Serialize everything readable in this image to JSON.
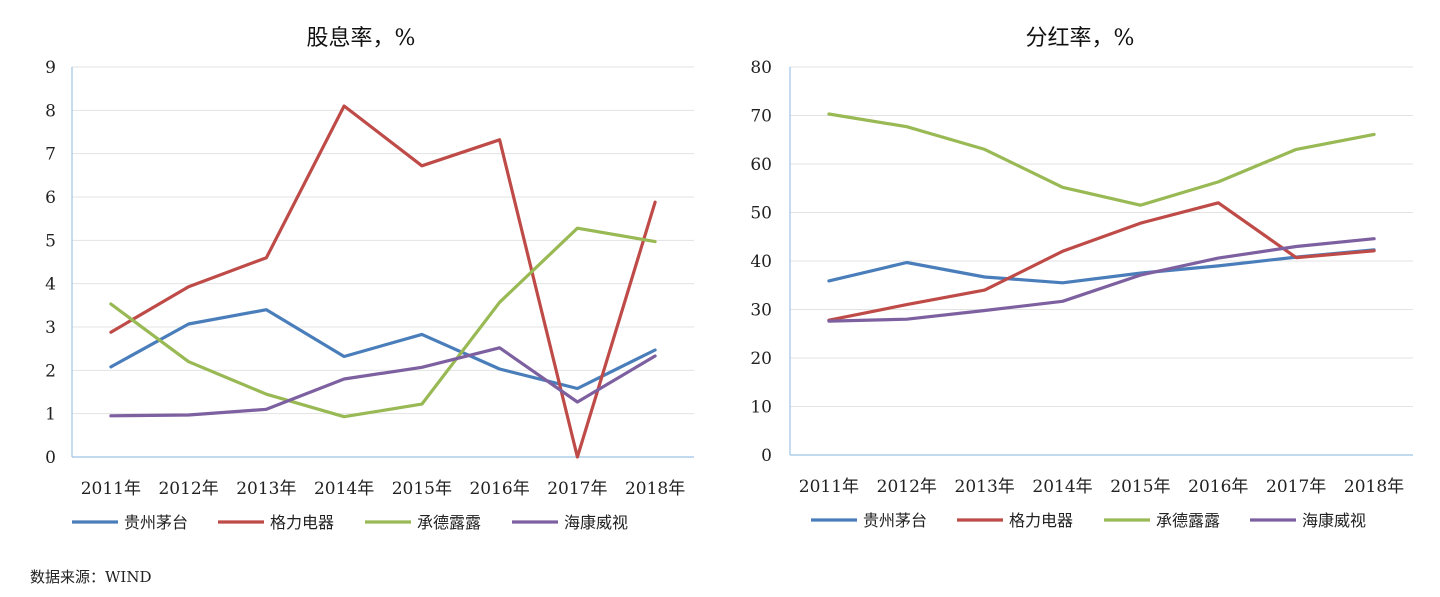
{
  "source_text": "数据来源：WIND",
  "chart_data": [
    {
      "type": "line",
      "title": "股息率，%",
      "xlabel": "",
      "ylabel": "",
      "categories": [
        "2011年",
        "2012年",
        "2013年",
        "2014年",
        "2015年",
        "2016年",
        "2017年",
        "2018年"
      ],
      "ylim": [
        0,
        9
      ],
      "yticks": [
        0,
        1,
        2,
        3,
        4,
        5,
        6,
        7,
        8,
        9
      ],
      "grid": true,
      "legend_position": "bottom",
      "series": [
        {
          "name": "贵州茅台",
          "color": "#4a7ebb",
          "values": [
            2.08,
            3.07,
            3.4,
            2.32,
            2.83,
            2.03,
            1.58,
            2.47
          ]
        },
        {
          "name": "格力电器",
          "color": "#be4b48",
          "values": [
            2.88,
            3.93,
            4.6,
            8.1,
            6.72,
            7.32,
            0.0,
            5.88
          ]
        },
        {
          "name": "承德露露",
          "color": "#98b954",
          "values": [
            3.53,
            2.2,
            1.45,
            0.93,
            1.22,
            3.57,
            5.28,
            4.97
          ]
        },
        {
          "name": "海康威视",
          "color": "#7d60a0",
          "values": [
            0.95,
            0.97,
            1.1,
            1.8,
            2.07,
            2.52,
            1.27,
            2.33
          ]
        }
      ]
    },
    {
      "type": "line",
      "title": "分红率，%",
      "xlabel": "",
      "ylabel": "",
      "categories": [
        "2011年",
        "2012年",
        "2013年",
        "2014年",
        "2015年",
        "2016年",
        "2017年",
        "2018年"
      ],
      "ylim": [
        0,
        80
      ],
      "yticks": [
        0,
        10,
        20,
        30,
        40,
        50,
        60,
        70,
        80
      ],
      "grid": true,
      "legend_position": "bottom",
      "series": [
        {
          "name": "贵州茅台",
          "color": "#4a7ebb",
          "values": [
            35.9,
            39.7,
            36.7,
            35.5,
            37.5,
            39.0,
            40.8,
            42.3
          ]
        },
        {
          "name": "格力电器",
          "color": "#be4b48",
          "values": [
            27.8,
            31.0,
            34.0,
            42.0,
            47.8,
            52.0,
            40.7,
            42.1
          ]
        },
        {
          "name": "承德露露",
          "color": "#98b954",
          "values": [
            70.3,
            67.7,
            63.0,
            55.2,
            51.5,
            56.3,
            63.0,
            66.1
          ]
        },
        {
          "name": "海康威视",
          "color": "#7d60a0",
          "values": [
            27.6,
            28.0,
            29.8,
            31.7,
            37.1,
            40.6,
            43.0,
            44.6
          ]
        }
      ]
    }
  ]
}
